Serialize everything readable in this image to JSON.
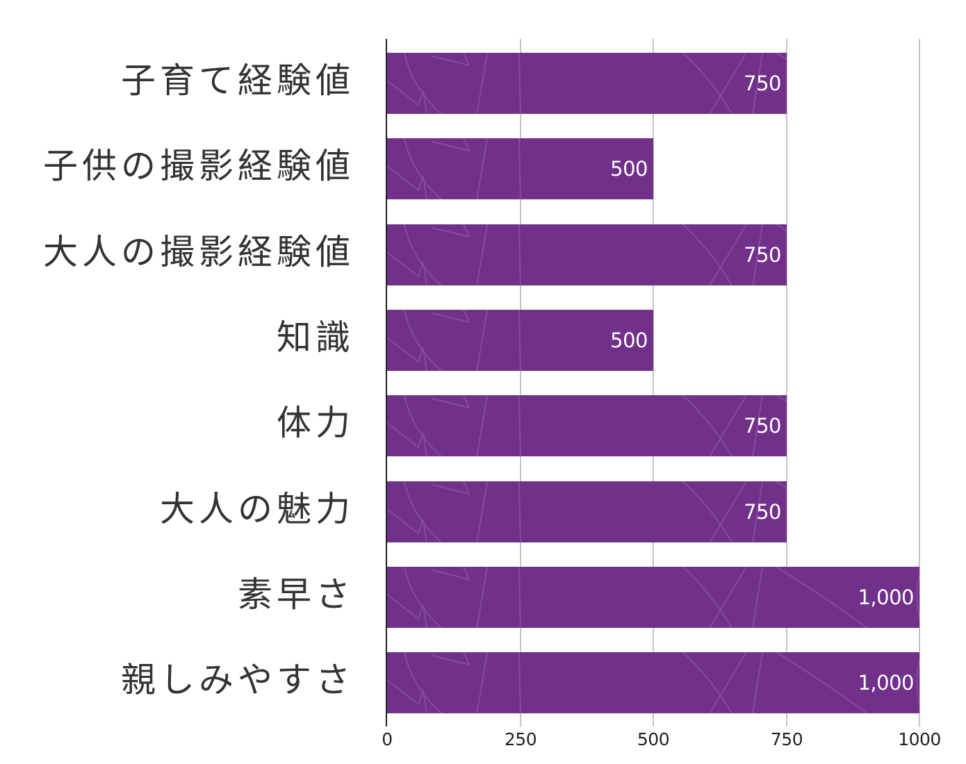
{
  "chart_data": {
    "type": "bar",
    "orientation": "horizontal",
    "title": "",
    "xlabel": "",
    "ylabel": "",
    "categories": [
      "子育て経験値",
      "子供の撮影経験値",
      "大人の撮影経験値",
      "知識",
      "体力",
      "大人の魅力",
      "素早さ",
      "親しみやすさ"
    ],
    "values": [
      750,
      500,
      750,
      500,
      750,
      750,
      1000,
      1000
    ],
    "value_labels": [
      "750",
      "500",
      "750",
      "500",
      "750",
      "750",
      "1,000",
      "1,000"
    ],
    "xlim": [
      0,
      1000
    ],
    "x_ticks": [
      "0",
      "250",
      "500",
      "750",
      "1000"
    ],
    "grid": "vertical",
    "legend": null,
    "colors": {
      "bar": "#71308a",
      "bar_texture": "#9a5fb0",
      "gridline": "#c4c4c4",
      "axis": "#222222",
      "label_text": "#333333",
      "value_text": "#ffffff"
    }
  }
}
